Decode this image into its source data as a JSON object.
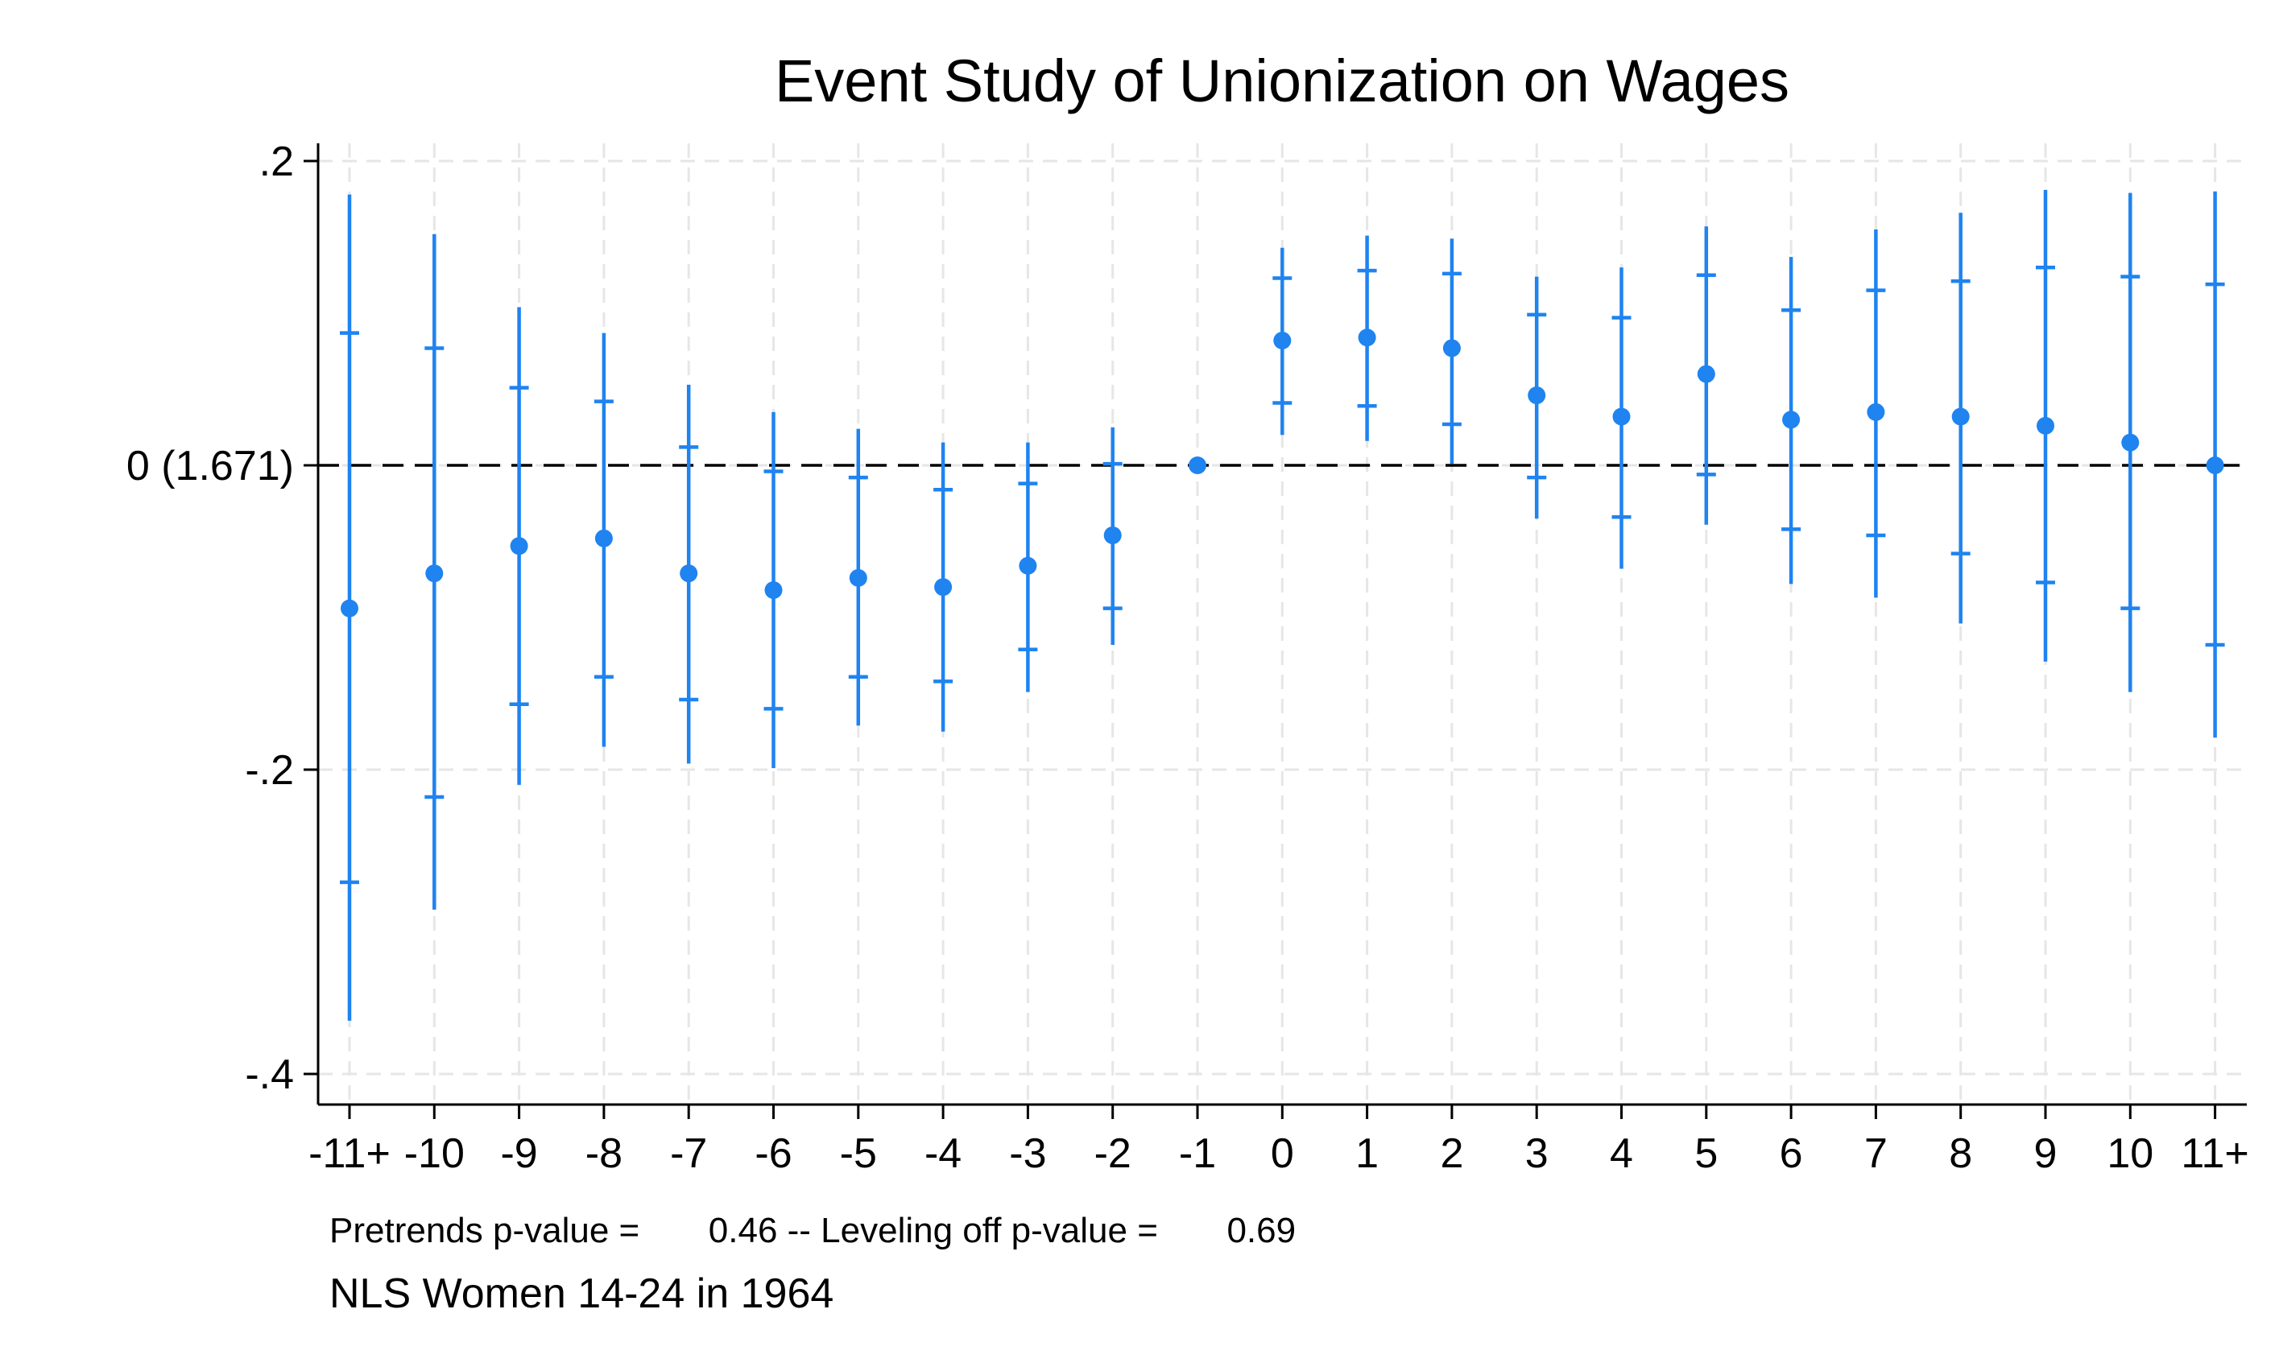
{
  "chart_data": {
    "type": "scatter",
    "title": "Event Study of Unionization on Wages",
    "xlabel": "",
    "ylabel": "",
    "categories": [
      "-11+",
      "-10",
      "-9",
      "-8",
      "-7",
      "-6",
      "-5",
      "-4",
      "-3",
      "-2",
      "-1",
      "0",
      "1",
      "2",
      "3",
      "4",
      "5",
      "6",
      "7",
      "8",
      "9",
      "10",
      "11+"
    ],
    "estimate": [
      -0.094,
      -0.071,
      -0.053,
      -0.048,
      -0.071,
      -0.082,
      -0.074,
      -0.08,
      -0.066,
      -0.046,
      0.0,
      0.082,
      0.084,
      0.077,
      0.046,
      0.032,
      0.06,
      0.03,
      0.035,
      0.032,
      0.026,
      0.015,
      0.0
    ],
    "ci_inner_low": [
      -0.274,
      -0.218,
      -0.157,
      -0.139,
      -0.154,
      -0.16,
      -0.139,
      -0.142,
      -0.121,
      -0.094,
      0.0,
      0.041,
      0.039,
      0.027,
      -0.008,
      -0.034,
      -0.006,
      -0.042,
      -0.046,
      -0.058,
      -0.077,
      -0.094,
      -0.118
    ],
    "ci_inner_high": [
      0.087,
      0.077,
      0.051,
      0.042,
      0.012,
      -0.004,
      -0.008,
      -0.016,
      -0.012,
      0.001,
      0.0,
      0.123,
      0.128,
      0.126,
      0.099,
      0.097,
      0.125,
      0.102,
      0.115,
      0.121,
      0.13,
      0.124,
      0.119
    ],
    "ci_outer_low": [
      -0.365,
      -0.292,
      -0.21,
      -0.185,
      -0.196,
      -0.199,
      -0.171,
      -0.175,
      -0.149,
      -0.118,
      0.0,
      0.02,
      0.016,
      0.001,
      -0.035,
      -0.068,
      -0.039,
      -0.078,
      -0.087,
      -0.104,
      -0.129,
      -0.149,
      -0.179
    ],
    "ci_outer_high": [
      0.178,
      0.152,
      0.104,
      0.087,
      0.053,
      0.035,
      0.024,
      0.015,
      0.015,
      0.025,
      0.0,
      0.143,
      0.151,
      0.149,
      0.124,
      0.13,
      0.157,
      0.137,
      0.155,
      0.166,
      0.181,
      0.179,
      0.18
    ],
    "ylim": [
      -0.42,
      0.2
    ],
    "y_ticks": [
      {
        "value": 0.2,
        "label": ".2"
      },
      {
        "value": 0.0,
        "label": "0 (1.671)"
      },
      {
        "value": -0.2,
        "label": "-.2"
      },
      {
        "value": -0.4,
        "label": "-.4"
      }
    ],
    "reference_line": {
      "value": 0.0,
      "style": "dashed"
    },
    "grid": true,
    "marker_color": "#1f83f0",
    "note_line1": "Pretrends p-value =       0.46 -- Leveling off p-value =       0.69",
    "note_line2": "NLS Women 14-24 in 1964"
  }
}
